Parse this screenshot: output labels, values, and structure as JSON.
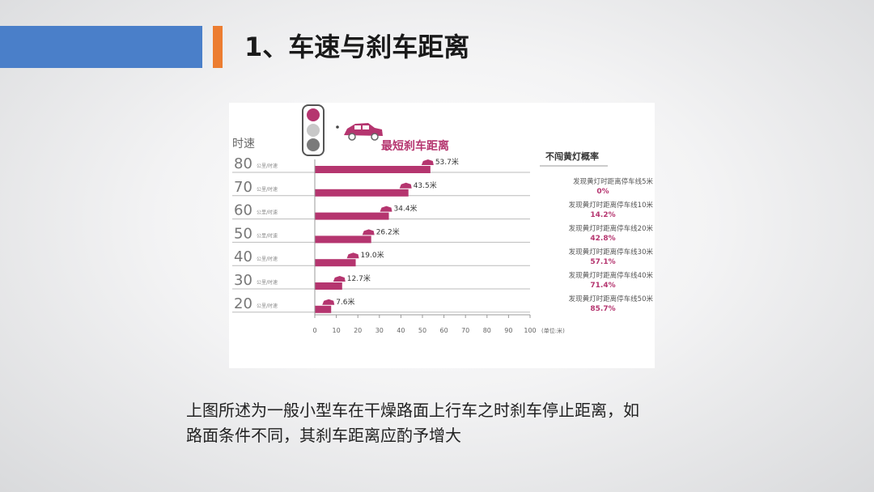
{
  "slide": {
    "title": "1、车速与刹车距离",
    "caption_line1": "上图所述为一般小型车在干燥路面上行车之时刹车停止距离，如",
    "caption_line2": "路面条件不同，其刹车距离应酌予增大"
  },
  "colors": {
    "accent_blue": "#4a7fc9",
    "accent_orange": "#ec7d31",
    "bar": "#b5356f",
    "light_red": "#b5356f",
    "light_off": "#c8c8c8",
    "light_dark": "#7a7a7a"
  },
  "chart_data": {
    "type": "bar",
    "orientation": "horizontal",
    "title": "最短刹车距离",
    "ylabel": "时速",
    "unit_label": "(单位:米)",
    "speed_unit": "公里/时速",
    "categories": [
      "80",
      "70",
      "60",
      "50",
      "40",
      "30",
      "20"
    ],
    "values": [
      53.7,
      43.5,
      34.4,
      26.2,
      19.0,
      12.7,
      7.6
    ],
    "value_labels": [
      "53.7米",
      "43.5米",
      "34.4米",
      "26.2米",
      "19.0米",
      "12.7米",
      "7.6米"
    ],
    "xlim": [
      0,
      100
    ],
    "xticks": [
      0,
      10,
      20,
      30,
      40,
      50,
      60,
      70,
      80,
      90,
      100
    ],
    "side_panel": {
      "title": "不闯黄灯概率",
      "items": [
        {
          "line": "发现黄灯时距离停车线5米",
          "pct": "0%"
        },
        {
          "line": "发现黄灯时距离停车线10米",
          "pct": "14.2%"
        },
        {
          "line": "发现黄灯时距离停车线20米",
          "pct": "42.8%"
        },
        {
          "line": "发现黄灯时距离停车线30米",
          "pct": "57.1%"
        },
        {
          "line": "发现黄灯时距离停车线40米",
          "pct": "71.4%"
        },
        {
          "line": "发现黄灯时距离停车线50米",
          "pct": "85.7%"
        }
      ]
    }
  }
}
